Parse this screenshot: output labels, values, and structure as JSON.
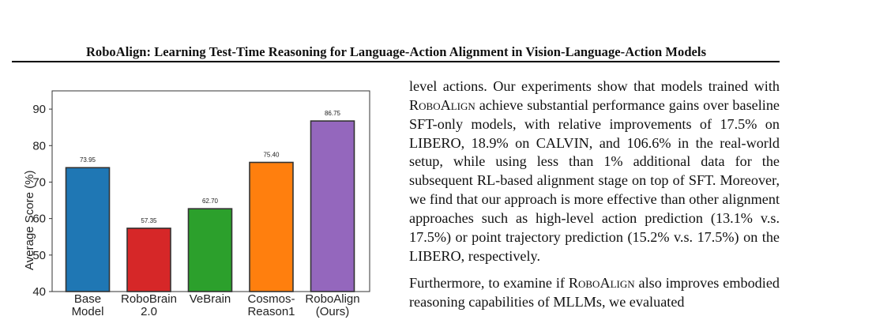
{
  "header": {
    "title": "RoboAlign: Learning Test-Time Reasoning for Language-Action Alignment in Vision-Language-Action Models"
  },
  "chart_data": {
    "type": "bar",
    "ylabel": "Average Score (%)",
    "xlabel": "",
    "ylim": [
      40,
      95
    ],
    "yticks": [
      "40",
      "50",
      "60",
      "70",
      "80",
      "90"
    ],
    "grid": false,
    "categories": [
      [
        "Base",
        "Model"
      ],
      [
        "RoboBrain",
        "2.0"
      ],
      [
        "VeBrain"
      ],
      [
        "Cosmos-",
        "Reason1"
      ],
      [
        "RoboAlign",
        "(Ours)"
      ]
    ],
    "values": [
      73.95,
      57.35,
      62.7,
      75.4,
      86.75
    ],
    "value_labels": [
      "73.95",
      "57.35",
      "62.70",
      "75.40",
      "86.75"
    ],
    "colors": [
      "#1f77b4",
      "#d62728",
      "#2ca02c",
      "#ff7f0e",
      "#9467bd"
    ]
  },
  "body": {
    "p1_a": "level actions. Our experiments show that models trained with ",
    "p1_sc": "RoboAlign",
    "p1_b": " achieve substantial performance gains over baseline SFT-only models, with relative improvements of 17.5% on LIBERO, 18.9% on CALVIN, and 106.6% in the real-world setup, while using less than 1% additional data for the subsequent RL-based alignment stage on top of SFT. Moreover, we find that our approach is more effective than other alignment approaches such as high-level action prediction (13.1% v.s. 17.5%) or point trajectory prediction (15.2% v.s. 17.5%) on the LIBERO, respectively.",
    "p2_a": "Furthermore, to examine if ",
    "p2_sc": "RoboAlign",
    "p2_b": " also improves embodied reasoning capabilities of MLLMs, we evaluated"
  }
}
